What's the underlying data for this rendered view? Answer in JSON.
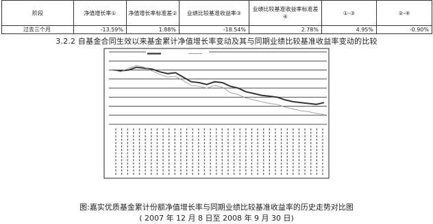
{
  "table": {
    "headers": [
      "阶段",
      "净值增长率①",
      "净值增长率标准差②",
      "业绩比较基准收益率③",
      "业绩比较基准收益率标准差④",
      "①-③",
      "②-④"
    ],
    "row": [
      "过去三个月",
      "-13.59%",
      "1.88%",
      "-18.54%",
      "2.78%",
      "4.95%",
      "-0.90%"
    ]
  },
  "heading": "3.2.2 自基金合同生效以来基金累计净值增长率变动及其与同期业绩比较基准收益率变动的比较",
  "caption_line1": "图:嘉实优质基金累计份额净值增长率与同期业绩比较基准收益率的历史走势对比图",
  "caption_line2": "( 2007 年 12 月 8 日至 2008 年 9 月 30 日)",
  "colors": {
    "fund": "#333333",
    "benchmark": "#9a9a9a",
    "grid": "#111111"
  },
  "chart_data": {
    "type": "line",
    "ylim": [
      -60,
      20
    ],
    "yticks": [
      20,
      10,
      0,
      -10,
      -20,
      -30,
      -40,
      -50,
      -60
    ],
    "series": [
      {
        "style": "thick",
        "values": [
          0,
          -1,
          0,
          3,
          2,
          1,
          -2,
          -4,
          -3,
          -8,
          -13,
          -14,
          -16,
          -13,
          -14,
          -18,
          -20,
          -24,
          -26,
          -28,
          -29,
          -30,
          -33,
          -35,
          -36,
          -37,
          -38,
          -36
        ]
      },
      {
        "style": "thin",
        "values": [
          0,
          -2,
          2,
          5,
          3,
          -1,
          -5,
          -8,
          -7,
          -12,
          -17,
          -18,
          -20,
          -17,
          -19,
          -25,
          -27,
          -31,
          -33,
          -35,
          -37,
          -38,
          -41,
          -43,
          -45,
          -46,
          -48,
          -49
        ]
      }
    ]
  }
}
